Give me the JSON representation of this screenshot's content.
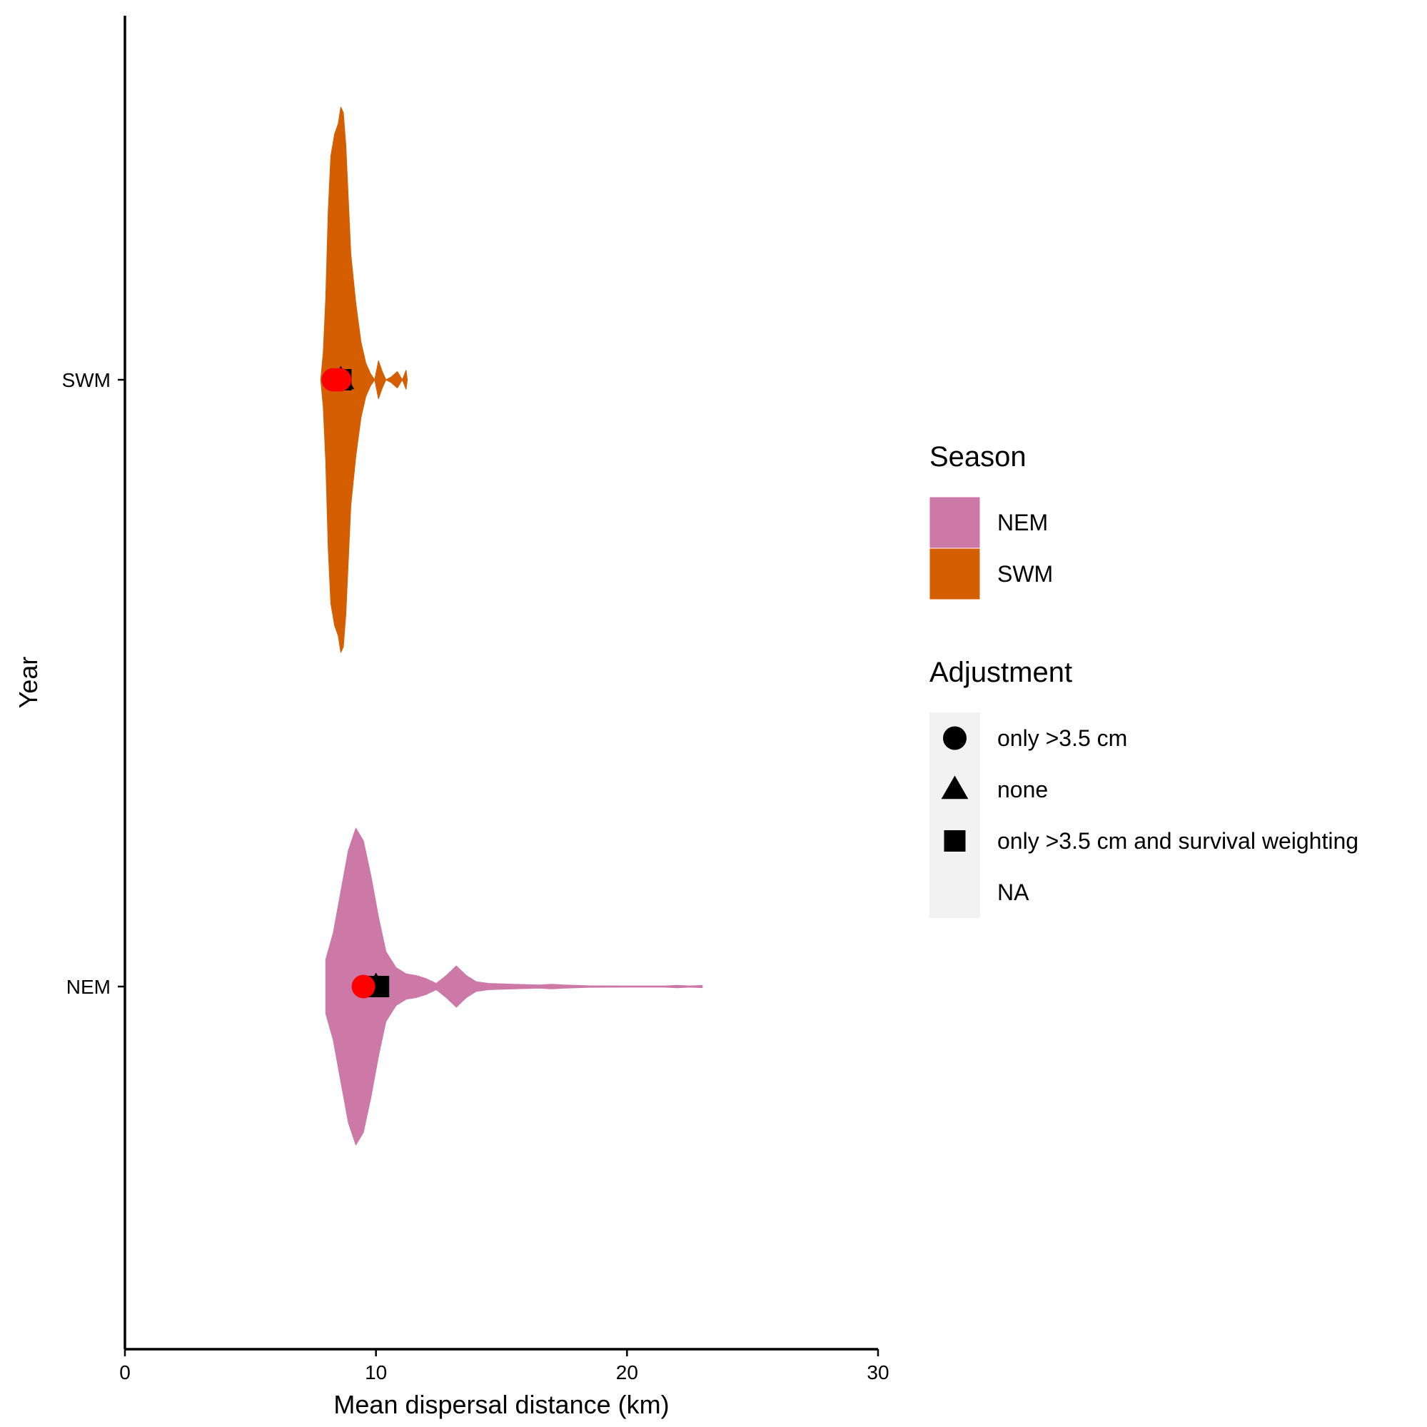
{
  "chart_data": {
    "type": "violin",
    "xlabel": "Mean dispersal distance (km)",
    "ylabel": "Year",
    "xlim": [
      0,
      30
    ],
    "x_ticks": [
      0,
      10,
      20,
      30
    ],
    "categories": [
      "SWM",
      "NEM"
    ],
    "grid": false,
    "legend_position": "right",
    "colors": {
      "NEM": "#CC79A7",
      "SWM": "#D55E00",
      "marker": "#000000",
      "highlight": "#FF0000",
      "legend_key_bg": "#F2F2F2"
    },
    "legends": [
      {
        "title": "Season",
        "kind": "fill",
        "entries": [
          {
            "label": "NEM",
            "color": "#CC79A7"
          },
          {
            "label": "SWM",
            "color": "#D55E00"
          }
        ]
      },
      {
        "title": "Adjustment",
        "kind": "shape",
        "entries": [
          {
            "label": "only >3.5 cm",
            "shape": "circle"
          },
          {
            "label": "none",
            "shape": "triangle"
          },
          {
            "label": "only >3.5 cm and survival weighting",
            "shape": "square"
          },
          {
            "label": "NA",
            "shape": "none"
          }
        ]
      }
    ],
    "violins": [
      {
        "name": "SWM",
        "category": "SWM",
        "color": "#D55E00",
        "profile": [
          [
            7.8,
            0.0
          ],
          [
            7.9,
            0.1
          ],
          [
            8.0,
            0.3
          ],
          [
            8.1,
            0.62
          ],
          [
            8.2,
            0.82
          ],
          [
            8.35,
            0.9
          ],
          [
            8.5,
            0.94
          ],
          [
            8.6,
            1.0
          ],
          [
            8.7,
            0.98
          ],
          [
            8.8,
            0.86
          ],
          [
            8.9,
            0.66
          ],
          [
            9.0,
            0.46
          ],
          [
            9.2,
            0.28
          ],
          [
            9.4,
            0.14
          ],
          [
            9.6,
            0.06
          ],
          [
            9.8,
            0.02
          ],
          [
            9.95,
            0.0
          ],
          [
            10.1,
            0.07
          ],
          [
            10.25,
            0.03
          ],
          [
            10.4,
            0.0
          ],
          [
            10.6,
            0.01
          ],
          [
            10.85,
            0.03
          ],
          [
            11.05,
            0.0
          ],
          [
            11.2,
            0.035
          ],
          [
            11.25,
            0.0
          ]
        ]
      },
      {
        "name": "NEM",
        "category": "NEM",
        "color": "#CC79A7",
        "profile": [
          [
            8.0,
            0.17
          ],
          [
            8.3,
            0.34
          ],
          [
            8.6,
            0.6
          ],
          [
            8.9,
            0.86
          ],
          [
            9.2,
            1.0
          ],
          [
            9.5,
            0.92
          ],
          [
            9.8,
            0.7
          ],
          [
            10.1,
            0.44
          ],
          [
            10.4,
            0.22
          ],
          [
            10.8,
            0.12
          ],
          [
            11.2,
            0.08
          ],
          [
            11.6,
            0.07
          ],
          [
            12.0,
            0.05
          ],
          [
            12.4,
            0.02
          ],
          [
            12.8,
            0.07
          ],
          [
            13.2,
            0.13
          ],
          [
            13.6,
            0.07
          ],
          [
            14.0,
            0.03
          ],
          [
            14.5,
            0.02
          ],
          [
            15.5,
            0.015
          ],
          [
            16.5,
            0.01
          ],
          [
            17.0,
            0.015
          ],
          [
            17.5,
            0.01
          ],
          [
            18.5,
            0.005
          ],
          [
            20.0,
            0.004
          ],
          [
            21.5,
            0.004
          ],
          [
            22.0,
            0.008
          ],
          [
            22.5,
            0.004
          ],
          [
            23.0,
            0.007
          ]
        ]
      }
    ],
    "points": [
      {
        "category": "SWM",
        "adjustment": "none",
        "x": 8.6,
        "shape": "triangle",
        "color": "#000000"
      },
      {
        "category": "SWM",
        "adjustment": "only >3.5 cm and survival weighting",
        "x": 8.6,
        "shape": "square",
        "color": "#000000"
      },
      {
        "category": "SWM",
        "adjustment": "only >3.5 cm",
        "x": 8.3,
        "shape": "circle",
        "color": "#FF0000"
      },
      {
        "category": "SWM",
        "adjustment": "only >3.5 cm",
        "x": 8.55,
        "shape": "circle",
        "color": "#FF0000"
      },
      {
        "category": "NEM",
        "adjustment": "none",
        "x": 10.0,
        "shape": "triangle",
        "color": "#000000"
      },
      {
        "category": "NEM",
        "adjustment": "only >3.5 cm and survival weighting",
        "x": 10.1,
        "shape": "square",
        "color": "#000000"
      },
      {
        "category": "NEM",
        "adjustment": "only >3.5 cm",
        "x": 9.5,
        "shape": "circle",
        "color": "#FF0000"
      }
    ]
  }
}
